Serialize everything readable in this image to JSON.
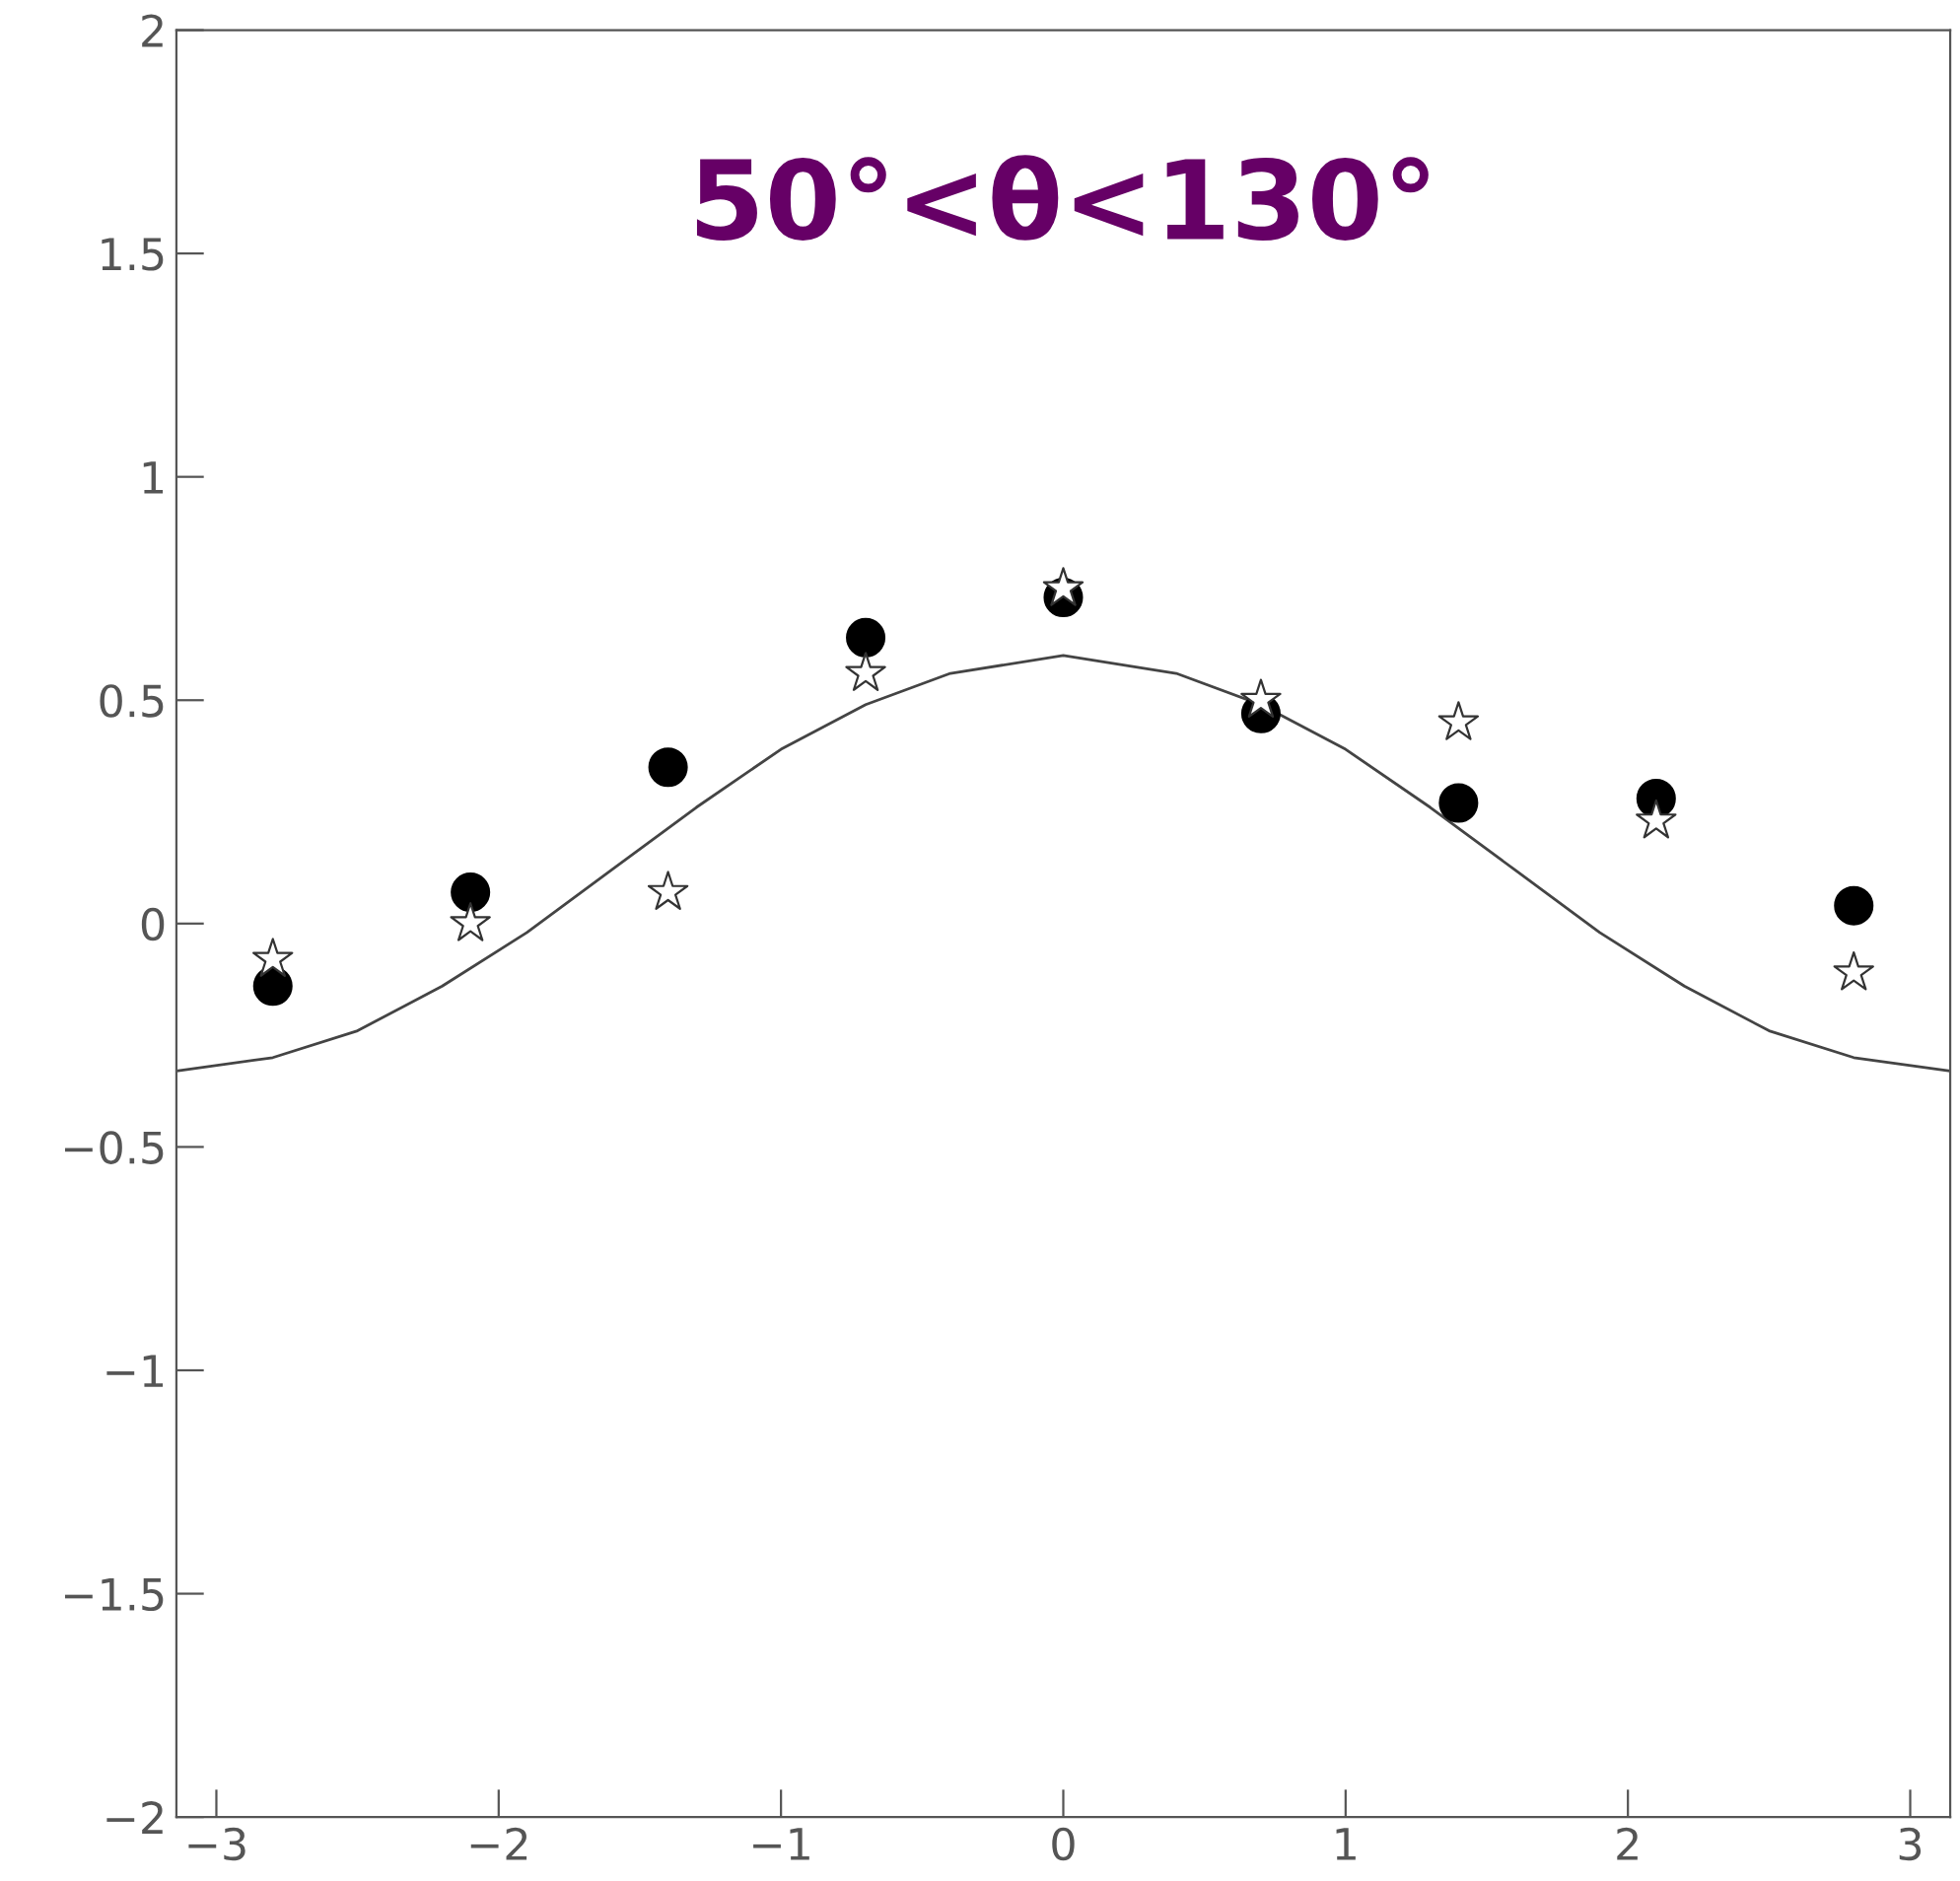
{
  "chart_data": {
    "type": "scatter",
    "annotations": [
      "50°<θ<130°"
    ],
    "xlim": [
      -3.1416,
      3.1416
    ],
    "ylim": [
      -2,
      2
    ],
    "xticks": [
      {
        "value": -3,
        "label": "−3"
      },
      {
        "value": -2,
        "label": "−2"
      },
      {
        "value": -1,
        "label": "−1"
      },
      0,
      1,
      2,
      3
    ],
    "yticks": [
      {
        "value": -2,
        "label": "−2"
      },
      {
        "value": -1.5,
        "label": "−1.5"
      },
      {
        "value": -1,
        "label": "−1"
      },
      {
        "value": -0.5,
        "label": "−0.5"
      },
      0,
      0.5,
      1,
      1.5,
      2
    ],
    "grid": false,
    "legend": false,
    "series": [
      {
        "type": "line",
        "color": "#444444",
        "marker": "none",
        "line_style": "solid",
        "x": [
          -3.1416,
          -2.8,
          -2.5,
          -2.2,
          -1.9,
          -1.6,
          -1.3,
          -1.0,
          -0.7,
          -0.4,
          0,
          0.4,
          0.7,
          1.0,
          1.3,
          1.6,
          1.9,
          2.2,
          2.5,
          2.8,
          3.1416
        ],
        "values": [
          -0.33,
          -0.3,
          -0.24,
          -0.14,
          -0.02,
          0.12,
          0.26,
          0.39,
          0.49,
          0.56,
          0.6,
          0.56,
          0.49,
          0.39,
          0.26,
          0.12,
          -0.02,
          -0.14,
          -0.24,
          -0.3,
          -0.33
        ]
      },
      {
        "color": "#000000",
        "marker": "circle",
        "x": [
          -2.8,
          -2.1,
          -1.4,
          -0.7,
          0,
          0.7,
          1.4,
          2.1,
          2.8
        ],
        "values": [
          -0.14,
          0.07,
          0.35,
          0.64,
          0.73,
          0.47,
          0.27,
          0.28,
          0.04
        ]
      },
      {
        "color": "#333333",
        "marker": "star",
        "x": [
          -2.8,
          -2.1,
          -1.4,
          -0.7,
          0,
          0.7,
          1.4,
          2.1,
          2.8
        ],
        "values": [
          -0.08,
          0.0,
          0.07,
          0.56,
          0.75,
          0.5,
          0.45,
          0.23,
          -0.11
        ]
      }
    ]
  }
}
